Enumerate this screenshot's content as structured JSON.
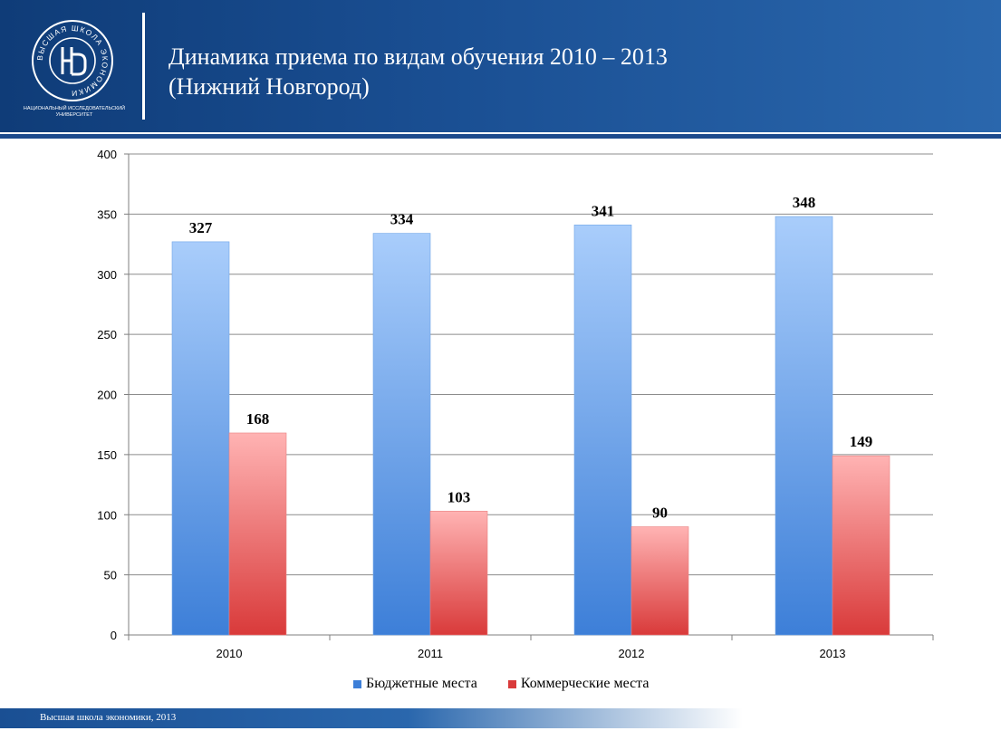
{
  "slide": {
    "title_line1": "Динамика приема по видам обучения 2010 – 2013",
    "title_line2": "(Нижний Новгород)",
    "logo_caption_line1": "НАЦИОНАЛЬНЫЙ ИССЛЕДОВАТЕЛЬСКИЙ",
    "logo_caption_line2": "УНИВЕРСИТЕТ",
    "logo_ring_text": "ВЫСШАЯ ШКОЛА ЭКОНОМИКИ",
    "footer": "Высшая школа экономики, 2013"
  },
  "colors": {
    "header": "#1a4f93",
    "budget_light": "#a9cdfb",
    "budget_dark": "#3d7fd8",
    "commercial_light": "#ffb3b3",
    "commercial_dark": "#d93a3a"
  },
  "chart_data": {
    "type": "bar",
    "categories": [
      "2010",
      "2011",
      "2012",
      "2013"
    ],
    "series": [
      {
        "name": "Бюджетные места",
        "values": [
          327,
          334,
          341,
          348
        ]
      },
      {
        "name": "Коммерческие места",
        "values": [
          168,
          103,
          90,
          149
        ]
      }
    ],
    "ylim": [
      0,
      400
    ],
    "yticks": [
      0,
      50,
      100,
      150,
      200,
      250,
      300,
      350,
      400
    ],
    "grid": true,
    "legend": "bottom"
  }
}
